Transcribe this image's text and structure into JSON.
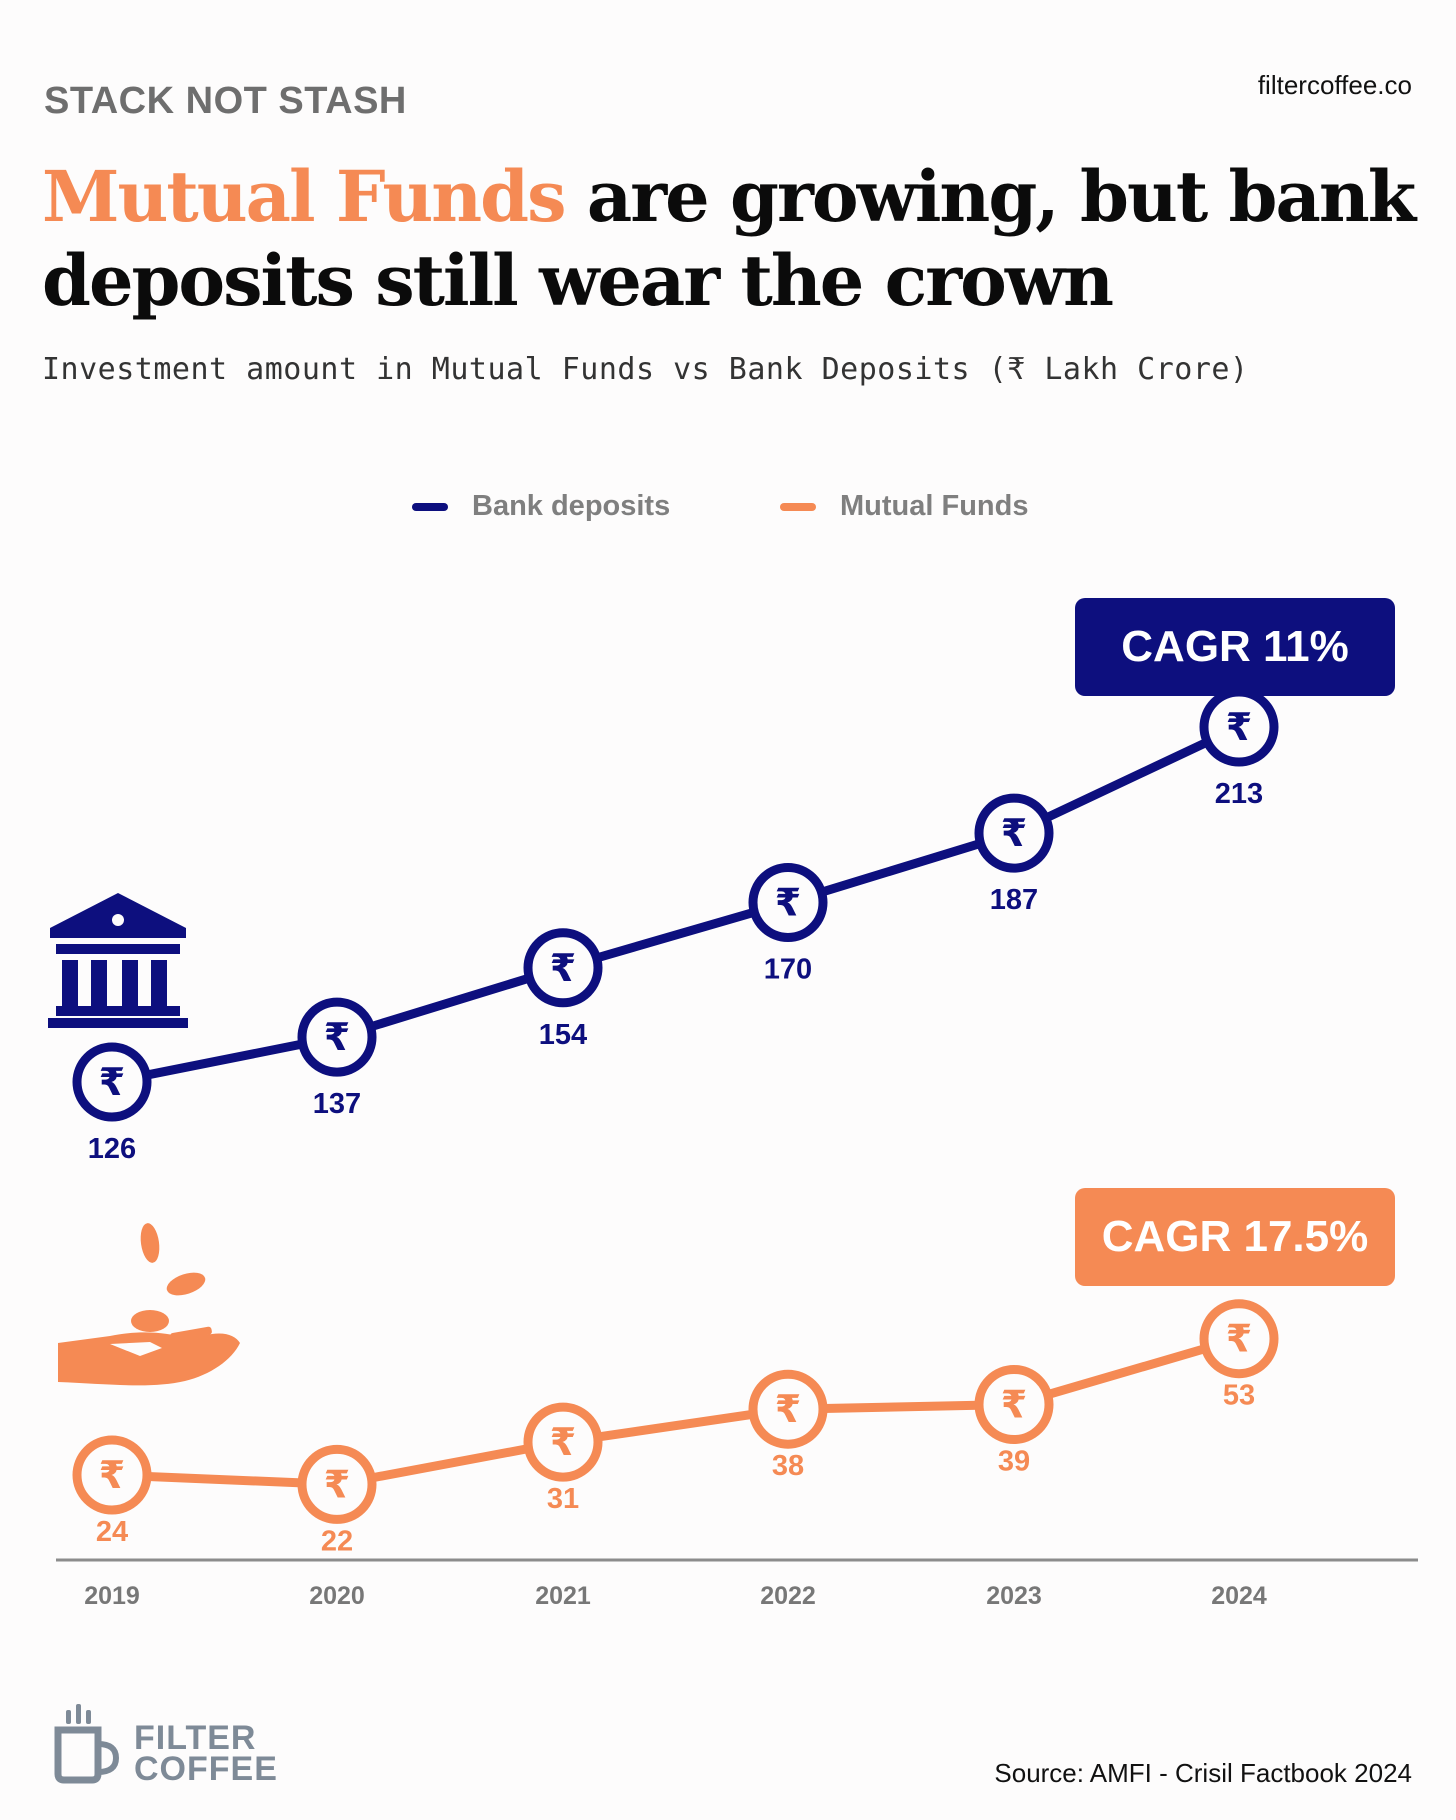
{
  "header": {
    "kicker": "STACK NOT STASH",
    "site": "filtercoffee.co",
    "title_highlight": "Mutual Funds",
    "title_rest": " are growing, but bank deposits still wear the crown",
    "subtitle": "Investment amount in Mutual Funds vs Bank Deposits (₹ Lakh Crore)"
  },
  "colors": {
    "bank": "#0d0f7e",
    "mf": "#f58a54",
    "axis": "#8c8c8c",
    "year_label": "#777777"
  },
  "icons": {
    "bank": "bank-building-icon",
    "mf": "hand-with-coins-icon",
    "marker": "rupee-coin-icon",
    "logo": "coffee-cup-icon"
  },
  "chart_data": {
    "type": "line",
    "x": [
      "2019",
      "2020",
      "2021",
      "2022",
      "2023",
      "2024"
    ],
    "series": [
      {
        "name": "Bank deposits",
        "values": [
          126,
          137,
          154,
          170,
          187,
          213
        ],
        "color": "#0d0f7e",
        "annotation": "CAGR 11%"
      },
      {
        "name": "Mutual Funds",
        "values": [
          24,
          22,
          31,
          38,
          39,
          53
        ],
        "color": "#f58a54",
        "annotation": "CAGR 17.5%"
      }
    ],
    "marker_symbol": "₹",
    "legend": "top-center",
    "grid": false
  },
  "footer": {
    "logo_line1": "FILTER",
    "logo_line2": "COFFEE",
    "source": "Source: AMFI - Crisil Factbook 2024"
  }
}
